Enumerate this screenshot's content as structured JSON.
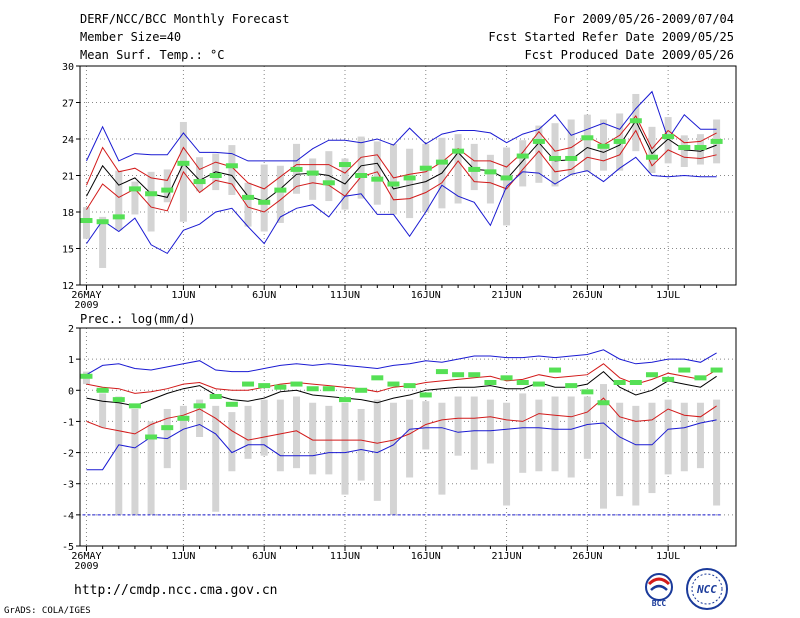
{
  "header": {
    "title": "DERF/NCC/BCC Monthly Forecast",
    "member_size": "Member Size=40",
    "panel1_label": "Mean Surf. Temp.: °C",
    "forecast_range": "For 2009/05/26-2009/07/04",
    "started_refer": "Fcst Started Refer Date 2009/05/25",
    "produced": "Fcst Produced Date 2009/05/26"
  },
  "panel2_label": "Prec.: log(mm/d)",
  "footer": {
    "url": "http://cmdp.ncc.cma.gov.cn",
    "grads": "GrADS: COLA/IGES",
    "logo_bcc_text": "BCC",
    "logo_ncc_text": "NCC"
  },
  "colors": {
    "grid": "#888888",
    "bar": "#d4d4d4",
    "median": "#55e055",
    "mean": "#000000",
    "spread": "#d21a1a",
    "extreme": "#1a1ad2",
    "floor": "#1a1ad2"
  },
  "chart_data": [
    {
      "type": "line",
      "title": "Mean Surf. Temp.: °C",
      "x_tick_labels": [
        "26MAY",
        "1JUN",
        "6JUN",
        "11JUN",
        "16JUN",
        "21JUN",
        "26JUN",
        "1JUL"
      ],
      "x_tick_days": [
        1,
        7,
        12,
        17,
        22,
        27,
        32,
        37
      ],
      "x_sublabel": "2009",
      "ylim": [
        12,
        30
      ],
      "y_ticks": [
        12,
        15,
        18,
        21,
        24,
        27,
        30
      ],
      "days": 40,
      "series": [
        {
          "name": "ensemble max",
          "values": [
            22.2,
            25,
            22.2,
            22.8,
            22.7,
            22.7,
            24.5,
            22.9,
            22.9,
            22.8,
            22.2,
            22.2,
            22.2,
            22.2,
            23.2,
            23.9,
            23.9,
            23.7,
            24,
            23.5,
            24.9,
            23.6,
            24.4,
            24.7,
            24.7,
            24.5,
            23.7,
            24.4,
            24.8,
            26,
            24.3,
            24.8,
            25.3,
            24.8,
            26.5,
            27.9,
            24,
            26,
            24.8,
            24.8
          ]
        },
        {
          "name": "mean + spread",
          "values": [
            20.2,
            23.3,
            21.3,
            21.6,
            20.8,
            20.6,
            23.3,
            21.5,
            22.1,
            21.7,
            20.4,
            19.9,
            20.9,
            21.9,
            21.9,
            21.9,
            21.2,
            22.5,
            22.7,
            20.8,
            21.1,
            21.3,
            22.1,
            23.2,
            22.2,
            22.2,
            21.7,
            22.9,
            24.6,
            23,
            23.3,
            24.2,
            23.5,
            24.3,
            25.9,
            23.2,
            24.7,
            23.7,
            23.8,
            24.5
          ]
        },
        {
          "name": "ensemble mean",
          "values": [
            19.3,
            21.8,
            20.2,
            20.8,
            19.5,
            19.2,
            22,
            20.6,
            21.3,
            21,
            19.3,
            18.9,
            19.9,
            21.1,
            21.2,
            21,
            20.3,
            21.8,
            22,
            19.9,
            20.2,
            20.5,
            21.2,
            22.9,
            21.5,
            21.4,
            20.7,
            22.2,
            23.7,
            22.2,
            22.3,
            23.3,
            22.9,
            23.5,
            25.5,
            22.8,
            24,
            23.1,
            23,
            23.5
          ]
        },
        {
          "name": "mean - spread",
          "values": [
            18.2,
            20.3,
            19.2,
            19.9,
            18.4,
            18.1,
            21.3,
            19.6,
            20.6,
            20.3,
            18.4,
            18,
            19,
            20.1,
            20.4,
            20.2,
            19.3,
            20.9,
            21.3,
            19,
            19.1,
            19.6,
            20.4,
            22.2,
            20.5,
            20.4,
            19.9,
            21.5,
            23,
            21.3,
            21.5,
            22.5,
            22.2,
            22.7,
            24.7,
            21.8,
            23.1,
            22.5,
            22.4,
            22.7
          ]
        },
        {
          "name": "ensemble min",
          "values": [
            15.4,
            17.3,
            16.4,
            17.5,
            15.3,
            14.6,
            16.5,
            17,
            18,
            18.3,
            16.8,
            15.4,
            17.6,
            18.3,
            18.6,
            17.6,
            19.3,
            19.5,
            17.8,
            17.8,
            16,
            18,
            20.2,
            19.3,
            18.8,
            16.9,
            20.1,
            21.3,
            21.2,
            20.3,
            21.1,
            21.4,
            20.5,
            21.6,
            22.5,
            21,
            20.9,
            21,
            20.9,
            20.9
          ]
        },
        {
          "name": "member median",
          "values": [
            17.3,
            17.2,
            17.6,
            19.9,
            19.5,
            19.8,
            22,
            20.5,
            21,
            21.8,
            19.2,
            18.8,
            19.8,
            21.5,
            21.2,
            20.4,
            21.9,
            21,
            20.7,
            20.3,
            20.8,
            21.6,
            22.1,
            23,
            21.5,
            21.3,
            20.8,
            22.6,
            23.8,
            22.4,
            22.4,
            24.1,
            23.4,
            23.8,
            25.5,
            22.5,
            24.2,
            23.3,
            23.3,
            23.8
          ]
        }
      ],
      "box_ranges": [
        [
          15.8,
          18.4
        ],
        [
          13.4,
          17.6
        ],
        [
          16.5,
          21.4
        ],
        [
          17.8,
          20.5
        ],
        [
          16.4,
          21.3
        ],
        [
          18.8,
          21.5
        ],
        [
          17.2,
          25.4
        ],
        [
          19.7,
          22.5
        ],
        [
          19.8,
          22.8
        ],
        [
          19.4,
          23.5
        ],
        [
          16.8,
          20.4
        ],
        [
          16.4,
          21.9
        ],
        [
          17.1,
          21.8
        ],
        [
          19.5,
          23.6
        ],
        [
          19,
          22.4
        ],
        [
          18.9,
          23
        ],
        [
          18.2,
          22.4
        ],
        [
          19.1,
          24.2
        ],
        [
          18.6,
          23.8
        ],
        [
          17.8,
          23.6
        ],
        [
          17.5,
          23.2
        ],
        [
          18,
          23.6
        ],
        [
          18.3,
          24.1
        ],
        [
          18.7,
          24.4
        ],
        [
          19.8,
          23.6
        ],
        [
          18.7,
          22.7
        ],
        [
          16.9,
          23.3
        ],
        [
          20.1,
          23.9
        ],
        [
          20.4,
          25.1
        ],
        [
          20.1,
          25.3
        ],
        [
          21,
          25.6
        ],
        [
          21.3,
          26
        ],
        [
          21.4,
          25.6
        ],
        [
          21.4,
          26.1
        ],
        [
          23,
          27.7
        ],
        [
          21.2,
          25
        ],
        [
          22,
          25.8
        ],
        [
          21.7,
          24.3
        ],
        [
          21.9,
          24.4
        ],
        [
          22,
          25.6
        ]
      ]
    },
    {
      "type": "line",
      "title": "Prec.: log(mm/d)",
      "x_tick_labels": [
        "26MAY",
        "1JUN",
        "6JUN",
        "11JUN",
        "16JUN",
        "21JUN",
        "26JUN",
        "1JUL"
      ],
      "x_tick_days": [
        1,
        7,
        12,
        17,
        22,
        27,
        32,
        37
      ],
      "x_sublabel": "2009",
      "ylim": [
        -5,
        2
      ],
      "y_ticks": [
        -5,
        -4,
        -3,
        -2,
        -1,
        0,
        1,
        2
      ],
      "days": 40,
      "series": [
        {
          "name": "ensemble max",
          "values": [
            0.5,
            0.8,
            0.85,
            0.7,
            0.65,
            0.75,
            0.85,
            0.95,
            0.65,
            0.6,
            0.6,
            0.7,
            0.8,
            0.85,
            0.8,
            0.85,
            0.8,
            0.75,
            0.7,
            0.8,
            0.85,
            0.95,
            0.9,
            1.0,
            1.1,
            1.1,
            1.05,
            1.05,
            1.1,
            1.05,
            1.1,
            1.15,
            1.3,
            1.0,
            0.85,
            0.9,
            1.0,
            1.0,
            0.9,
            1.2
          ]
        },
        {
          "name": "mean + spread",
          "values": [
            0.2,
            0.1,
            0.05,
            -0.1,
            -0.05,
            0.05,
            0.2,
            0.25,
            0.05,
            0,
            0,
            0.1,
            0.2,
            0.25,
            0.2,
            0.15,
            0.1,
            0.05,
            -0.05,
            0.1,
            0.15,
            0.25,
            0.3,
            0.35,
            0.4,
            0.45,
            0.3,
            0.35,
            0.5,
            0.4,
            0.45,
            0.5,
            0.85,
            0.4,
            0.2,
            0.35,
            0.55,
            0.45,
            0.35,
            0.65
          ]
        },
        {
          "name": "ensemble mean",
          "values": [
            -0.25,
            -0.35,
            -0.4,
            -0.5,
            -0.3,
            -0.1,
            0.05,
            0.15,
            -0.15,
            -0.3,
            -0.35,
            -0.25,
            -0.05,
            0,
            -0.15,
            -0.2,
            -0.25,
            -0.3,
            -0.4,
            -0.25,
            -0.15,
            0,
            0.05,
            0.1,
            0.1,
            0.15,
            0.05,
            0.05,
            0.25,
            0.1,
            0.1,
            0.2,
            0.6,
            0.1,
            -0.15,
            0,
            0.3,
            0.2,
            0.1,
            0.45
          ]
        },
        {
          "name": "mean - spread",
          "values": [
            -1,
            -1.2,
            -1.3,
            -1.4,
            -1.1,
            -0.9,
            -0.8,
            -0.6,
            -0.9,
            -1.3,
            -1.6,
            -1.5,
            -1.4,
            -1.3,
            -1.6,
            -1.6,
            -1.6,
            -1.6,
            -1.7,
            -1.6,
            -1.4,
            -1.1,
            -0.95,
            -0.9,
            -0.9,
            -0.85,
            -0.95,
            -1.0,
            -0.75,
            -0.8,
            -0.85,
            -0.7,
            -0.25,
            -0.85,
            -1.0,
            -0.95,
            -0.6,
            -0.8,
            -0.85,
            -0.5
          ]
        },
        {
          "name": "ensemble min",
          "values": [
            -2.55,
            -2.55,
            -1.75,
            -1.85,
            -1.5,
            -1.55,
            -1.25,
            -1.1,
            -1.4,
            -2,
            -1.75,
            -1.75,
            -2.1,
            -2.1,
            -2.1,
            -2,
            -2,
            -1.9,
            -2,
            -1.75,
            -1.25,
            -1.2,
            -1.2,
            -1.35,
            -1.3,
            -1.3,
            -1.25,
            -1.2,
            -1.2,
            -1.25,
            -1.25,
            -1.1,
            -1.05,
            -1.5,
            -1.75,
            -1.75,
            -1.25,
            -1.2,
            -1.05,
            -0.95
          ]
        },
        {
          "name": "member median",
          "values": [
            0.45,
            0,
            -0.3,
            -0.5,
            -1.5,
            -1.2,
            -0.9,
            -0.5,
            -0.2,
            -0.45,
            0.2,
            0.15,
            0.1,
            0.2,
            0.05,
            0.05,
            -0.3,
            0,
            0.4,
            0.2,
            0.15,
            -0.15,
            0.6,
            0.5,
            0.5,
            0.25,
            0.4,
            0.25,
            0.2,
            0.65,
            0.15,
            -0.05,
            -0.4,
            0.25,
            0.25,
            0.5,
            0.35,
            0.65,
            0.4,
            0.65
          ]
        }
      ],
      "floor_value": -4,
      "box_ranges": [
        [
          0.6,
          0.2
        ],
        [
          -0.1,
          -1.2
        ],
        [
          -0.2,
          -4
        ],
        [
          -0.6,
          -4
        ],
        [
          -1,
          -4
        ],
        [
          -0.6,
          -2.5
        ],
        [
          -0.5,
          -3.2
        ],
        [
          -0.3,
          -1.5
        ],
        [
          -0.5,
          -3.9
        ],
        [
          -0.7,
          -2.6
        ],
        [
          -0.5,
          -2.2
        ],
        [
          -0.3,
          -2.1
        ],
        [
          -0.3,
          -2.6
        ],
        [
          -0.2,
          -2.5
        ],
        [
          -0.4,
          -2.7
        ],
        [
          -0.5,
          -2.7
        ],
        [
          -0.4,
          -3.35
        ],
        [
          -0.6,
          -2.9
        ],
        [
          -0.3,
          -3.55
        ],
        [
          -0.4,
          -4
        ],
        [
          -0.3,
          -2.8
        ],
        [
          -0.35,
          -1.9
        ],
        [
          -0.4,
          -3.35
        ],
        [
          -0.2,
          -2.1
        ],
        [
          -0.2,
          -2.55
        ],
        [
          -0.3,
          -2.35
        ],
        [
          -0.4,
          -3.7
        ],
        [
          -0.1,
          -2.65
        ],
        [
          -0.3,
          -2.6
        ],
        [
          -0.2,
          -2.6
        ],
        [
          -0.2,
          -2.8
        ],
        [
          -0.2,
          -2.2
        ],
        [
          0.2,
          -3.8
        ],
        [
          -0.4,
          -3.4
        ],
        [
          -0.5,
          -3.7
        ],
        [
          -0.4,
          -3.3
        ],
        [
          -0.3,
          -2.7
        ],
        [
          -0.4,
          -2.6
        ],
        [
          -0.4,
          -2.5
        ],
        [
          -0.3,
          -3.7
        ]
      ]
    }
  ]
}
